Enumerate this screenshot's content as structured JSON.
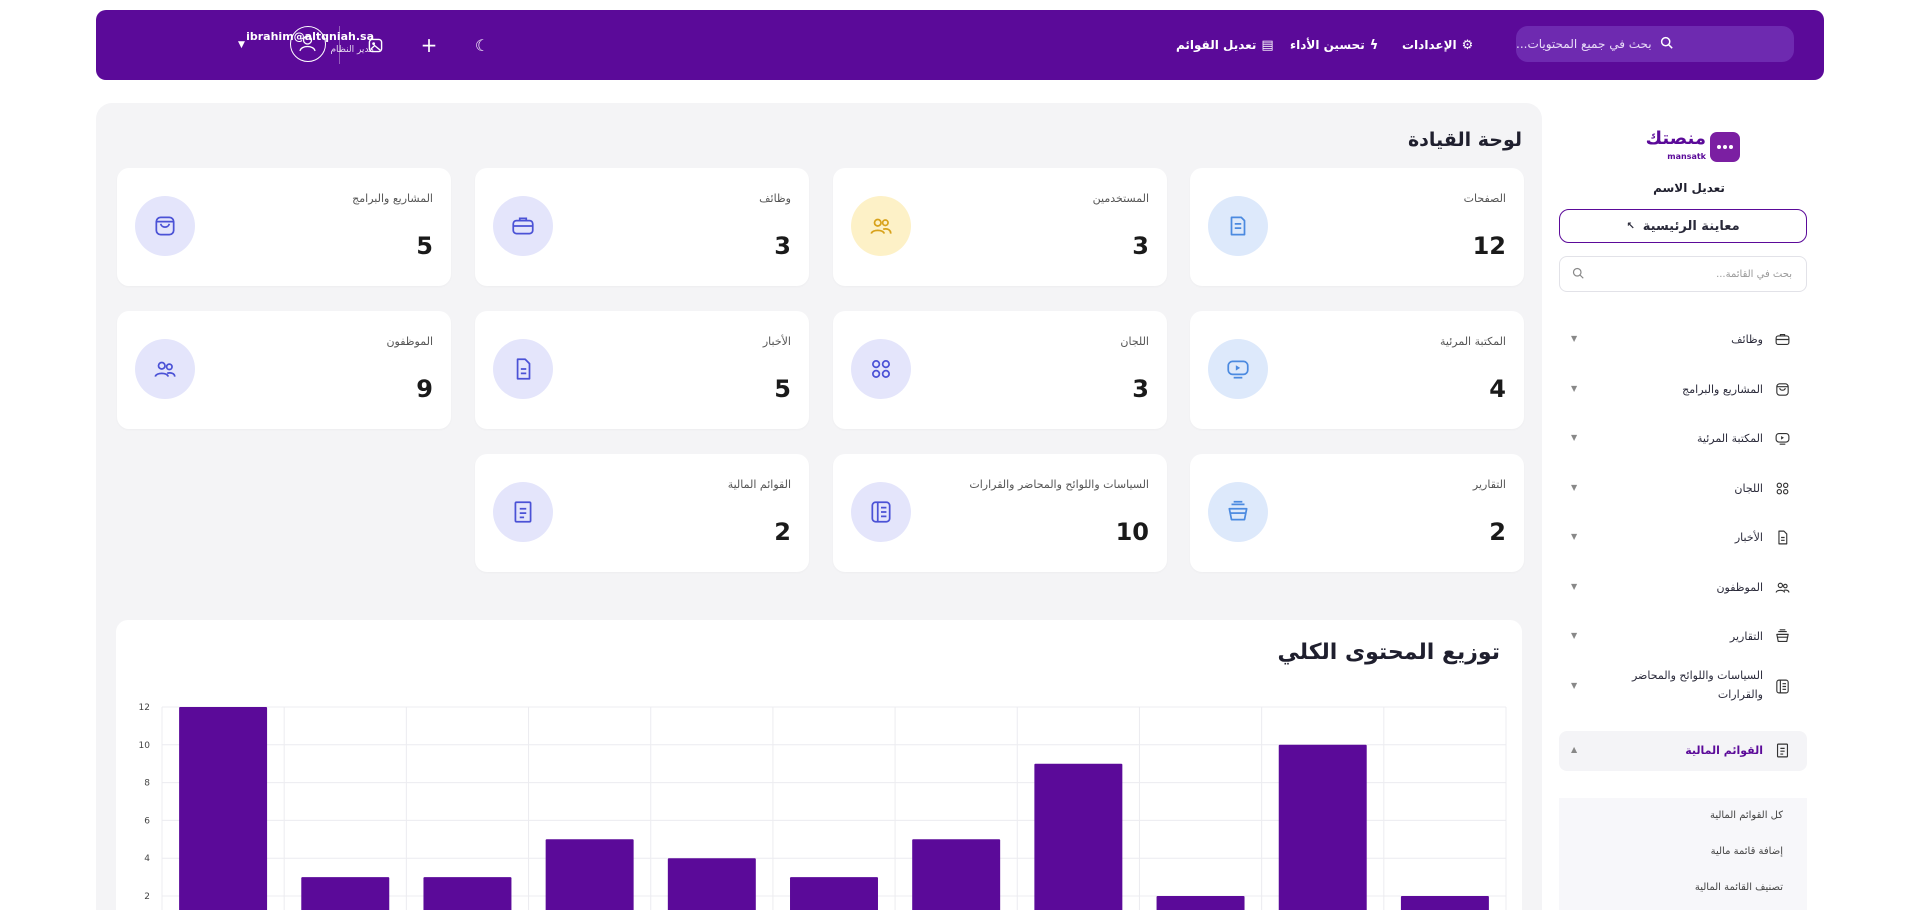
{
  "topbar": {
    "search_placeholder": "بحث في جميع المحتويات...",
    "nav": [
      {
        "label": "الإعدادات",
        "icon": "gear-icon"
      },
      {
        "label": "تحسين الأداء",
        "icon": "bolt-icon"
      },
      {
        "label": "تعديل القوائم",
        "icon": "menu-edit-icon"
      }
    ],
    "user": {
      "email": "ibrahim@altqniah.sa",
      "role": "مدير النظام"
    }
  },
  "page_title": "لوحة القيادة",
  "cards": [
    {
      "label": "الصفحات",
      "value": "12",
      "icon": "pages-icon"
    },
    {
      "label": "المستخدمين",
      "value": "3",
      "icon": "users-icon"
    },
    {
      "label": "وظائف",
      "value": "3",
      "icon": "briefcase-icon"
    },
    {
      "label": "المشاريع والبرامج",
      "value": "5",
      "icon": "projects-icon"
    },
    {
      "label": "المكتبة المرئية",
      "value": "4",
      "icon": "video-icon"
    },
    {
      "label": "اللجان",
      "value": "3",
      "icon": "grid-icon"
    },
    {
      "label": "الأخبار",
      "value": "5",
      "icon": "news-icon"
    },
    {
      "label": "الموظفون",
      "value": "9",
      "icon": "employees-icon"
    },
    {
      "label": "التقارير",
      "value": "2",
      "icon": "reports-icon"
    },
    {
      "label": "السياسات واللوائح والمحاضر والقرارات",
      "value": "10",
      "icon": "policies-icon"
    },
    {
      "label": "القوائم المالية",
      "value": "2",
      "icon": "finance-icon"
    }
  ],
  "chart_data": {
    "type": "bar",
    "title": "توزيع المحتوى الكلي",
    "xlabel": "",
    "ylabel": "",
    "values": [
      12,
      3,
      3,
      5,
      4,
      3,
      5,
      9,
      2,
      10,
      2
    ],
    "ylim": [
      0,
      12
    ],
    "yticks": [
      2,
      4,
      6,
      8,
      10,
      12
    ],
    "bar_color": "#5b0a99",
    "grid": true
  },
  "sidebar": {
    "logo_ar": "منصتك",
    "logo_en": "mansatk",
    "edit_name": "تعديل الاسم",
    "preview": "معاينة الرئيسية",
    "search_placeholder": "بحث في القائمة...",
    "items": [
      {
        "label": "وظائف",
        "icon": "briefcase-icon"
      },
      {
        "label": "المشاريع والبرامج",
        "icon": "projects-icon"
      },
      {
        "label": "المكتبة المرئية",
        "icon": "video-icon"
      },
      {
        "label": "اللجان",
        "icon": "grid-icon"
      },
      {
        "label": "الأخبار",
        "icon": "news-icon"
      },
      {
        "label": "الموظفون",
        "icon": "employees-icon"
      },
      {
        "label": "التقارير",
        "icon": "reports-icon"
      },
      {
        "label": "السياسات واللوائح والمحاضر",
        "label2": "والقرارات",
        "icon": "policies-icon"
      },
      {
        "label": "القوائم المالية",
        "icon": "finance-icon"
      }
    ],
    "submenu": [
      "كل القوائم المالية",
      "إضافة قائمة مالية",
      "تصنيف القائمة المالية"
    ]
  },
  "colors": {
    "brand": "#5b0a99",
    "accent_light": "#e4e5fb"
  }
}
